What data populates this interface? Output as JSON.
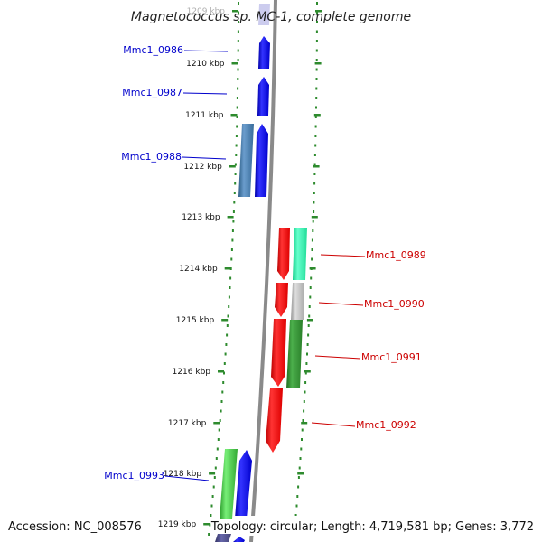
{
  "title": "Magnetococcus sp. MC-1, complete genome",
  "accession": "Accession: NC_008576",
  "topology": "Topology: circular; Length: 4,719,581 bp; Genes: 3,772",
  "colors": {
    "forward_label": "#0000cc",
    "reverse_label": "#cc0000",
    "axis": "#888888",
    "dots": "#2e8b2e"
  },
  "ticks": [
    "1209 kbp",
    "1210 kbp",
    "1211 kbp",
    "1212 kbp",
    "1213 kbp",
    "1214 kbp",
    "1215 kbp",
    "1216 kbp",
    "1217 kbp",
    "1218 kbp",
    "1219 kbp"
  ],
  "gene_labels": [
    {
      "text": "Mmc1_0986",
      "strand": "forward"
    },
    {
      "text": "Mmc1_0987",
      "strand": "forward"
    },
    {
      "text": "Mmc1_0988",
      "strand": "forward"
    },
    {
      "text": "Mmc1_0989",
      "strand": "reverse"
    },
    {
      "text": "Mmc1_0990",
      "strand": "reverse"
    },
    {
      "text": "Mmc1_0991",
      "strand": "reverse"
    },
    {
      "text": "Mmc1_0992",
      "strand": "reverse"
    },
    {
      "text": "Mmc1_0993",
      "strand": "forward"
    }
  ]
}
